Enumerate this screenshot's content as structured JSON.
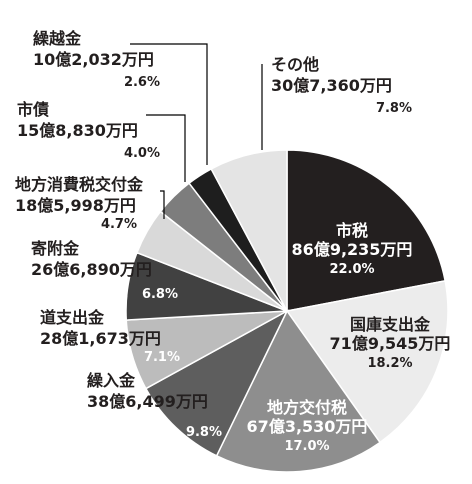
{
  "chart_data": {
    "type": "pie",
    "start_angle_deg": 0,
    "direction": "clockwise",
    "slices": [
      {
        "label": "市税",
        "amount": "86億9,235万円",
        "value": 22.0,
        "pct": "22.0%",
        "color": "#231f1f",
        "text_color": "#ffffff"
      },
      {
        "label": "国庫支出金",
        "amount": "71億9,545万円",
        "value": 18.2,
        "pct": "18.2%",
        "color": "#ececec",
        "text_color": "#231f1f"
      },
      {
        "label": "地方交付税",
        "amount": "67億3,530万円",
        "value": 17.0,
        "pct": "17.0%",
        "color": "#8e8e8e",
        "text_color": "#ffffff"
      },
      {
        "label": "繰入金",
        "amount": "38億6,499万円",
        "value": 9.8,
        "pct": "9.8%",
        "color": "#5e5e5e",
        "text_color": "#ffffff"
      },
      {
        "label": "道支出金",
        "amount": "28億1,673万円",
        "value": 7.1,
        "pct": "7.1%",
        "color": "#bcbcbc",
        "text_color": "#231f1f"
      },
      {
        "label": "寄附金",
        "amount": "26億6,890万円",
        "value": 6.8,
        "pct": "6.8%",
        "color": "#414141",
        "text_color": "#ffffff"
      },
      {
        "label": "地方消費税交付金",
        "amount": "18億5,998万円",
        "value": 4.7,
        "pct": "4.7%",
        "color": "#d9d9d9",
        "text_color": "#231f1f"
      },
      {
        "label": "市債",
        "amount": "15億8,830万円",
        "value": 4.0,
        "pct": "4.0%",
        "color": "#7d7d7d",
        "text_color": "#231f1f"
      },
      {
        "label": "繰越金",
        "amount": "10億2,032万円",
        "value": 2.6,
        "pct": "2.6%",
        "color": "#1e1e1e",
        "text_color": "#231f1f"
      },
      {
        "label": "その他",
        "amount": "30億7,360万円",
        "value": 7.8,
        "pct": "7.8%",
        "color": "#e4e4e4",
        "text_color": "#231f1f"
      }
    ]
  }
}
